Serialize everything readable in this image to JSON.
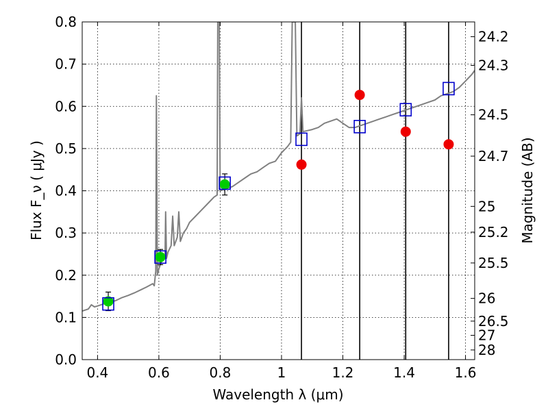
{
  "chart_data": {
    "type": "scatter",
    "xlabel": "Wavelength  λ (μm)",
    "ylabel": "Flux  F_ν  ( μJy )",
    "ylabel_right": "Magnitude (AB)",
    "xlim": [
      0.35,
      1.63
    ],
    "ylim": [
      0.0,
      0.8
    ],
    "grid": true,
    "x_ticks": [
      0.4,
      0.6,
      0.8,
      1.0,
      1.2,
      1.4,
      1.6
    ],
    "x_tick_labels": [
      "0.4",
      "0.6",
      "0.8",
      "1",
      "1.2",
      "1.4",
      "1.6"
    ],
    "y_ticks": [
      0.0,
      0.1,
      0.2,
      0.3,
      0.4,
      0.5,
      0.6,
      0.7,
      0.8
    ],
    "y_tick_labels": [
      "0.0",
      "0.1",
      "0.2",
      "0.3",
      "0.4",
      "0.5",
      "0.6",
      "0.7",
      "0.8"
    ],
    "right_ticks": [
      {
        "label": "24.2",
        "flux": 0.765
      },
      {
        "label": "24.3",
        "flux": 0.697
      },
      {
        "label": "24.5",
        "flux": 0.58
      },
      {
        "label": "24.7",
        "flux": 0.482
      },
      {
        "label": "25",
        "flux": 0.363
      },
      {
        "label": "25.2",
        "flux": 0.302
      },
      {
        "label": "25.5",
        "flux": 0.229
      },
      {
        "label": "26",
        "flux": 0.145
      },
      {
        "label": "26.5",
        "flux": 0.0912
      },
      {
        "label": "27",
        "flux": 0.0575
      },
      {
        "label": "28",
        "flux": 0.0229
      }
    ],
    "vertical_lines": [
      1.065,
      1.255,
      1.405,
      1.545
    ],
    "model_spectrum": {
      "color": "#808080",
      "points": [
        [
          0.35,
          0.115
        ],
        [
          0.37,
          0.12
        ],
        [
          0.38,
          0.13
        ],
        [
          0.39,
          0.125
        ],
        [
          0.4,
          0.127
        ],
        [
          0.42,
          0.132
        ],
        [
          0.44,
          0.135
        ],
        [
          0.46,
          0.14
        ],
        [
          0.48,
          0.147
        ],
        [
          0.5,
          0.152
        ],
        [
          0.52,
          0.158
        ],
        [
          0.54,
          0.165
        ],
        [
          0.56,
          0.172
        ],
        [
          0.58,
          0.18
        ],
        [
          0.585,
          0.175
        ],
        [
          0.59,
          0.21
        ],
        [
          0.592,
          0.625
        ],
        [
          0.595,
          0.2
        ],
        [
          0.6,
          0.215
        ],
        [
          0.61,
          0.235
        ],
        [
          0.62,
          0.24
        ],
        [
          0.622,
          0.35
        ],
        [
          0.625,
          0.24
        ],
        [
          0.63,
          0.255
        ],
        [
          0.64,
          0.27
        ],
        [
          0.645,
          0.34
        ],
        [
          0.65,
          0.27
        ],
        [
          0.66,
          0.29
        ],
        [
          0.665,
          0.35
        ],
        [
          0.67,
          0.28
        ],
        [
          0.68,
          0.3
        ],
        [
          0.69,
          0.31
        ],
        [
          0.7,
          0.325
        ],
        [
          0.72,
          0.34
        ],
        [
          0.74,
          0.355
        ],
        [
          0.76,
          0.37
        ],
        [
          0.78,
          0.385
        ],
        [
          0.79,
          0.39
        ],
        [
          0.792,
          0.8
        ],
        [
          0.797,
          0.8
        ],
        [
          0.8,
          0.4
        ],
        [
          0.82,
          0.405
        ],
        [
          0.84,
          0.41
        ],
        [
          0.86,
          0.42
        ],
        [
          0.88,
          0.43
        ],
        [
          0.9,
          0.44
        ],
        [
          0.92,
          0.445
        ],
        [
          0.94,
          0.455
        ],
        [
          0.96,
          0.465
        ],
        [
          0.98,
          0.47
        ],
        [
          1.0,
          0.49
        ],
        [
          1.02,
          0.505
        ],
        [
          1.03,
          0.515
        ],
        [
          1.035,
          0.8
        ],
        [
          1.045,
          0.8
        ],
        [
          1.05,
          0.53
        ],
        [
          1.06,
          0.535
        ],
        [
          1.065,
          0.62
        ],
        [
          1.07,
          0.54
        ],
        [
          1.1,
          0.545
        ],
        [
          1.12,
          0.55
        ],
        [
          1.14,
          0.56
        ],
        [
          1.16,
          0.565
        ],
        [
          1.18,
          0.57
        ],
        [
          1.2,
          0.56
        ],
        [
          1.22,
          0.55
        ],
        [
          1.24,
          0.55
        ],
        [
          1.26,
          0.555
        ],
        [
          1.28,
          0.56
        ],
        [
          1.3,
          0.565
        ],
        [
          1.32,
          0.57
        ],
        [
          1.34,
          0.575
        ],
        [
          1.36,
          0.58
        ],
        [
          1.38,
          0.585
        ],
        [
          1.4,
          0.59
        ],
        [
          1.42,
          0.595
        ],
        [
          1.44,
          0.6
        ],
        [
          1.46,
          0.605
        ],
        [
          1.48,
          0.61
        ],
        [
          1.5,
          0.615
        ],
        [
          1.52,
          0.625
        ],
        [
          1.54,
          0.63
        ],
        [
          1.56,
          0.635
        ],
        [
          1.58,
          0.645
        ],
        [
          1.6,
          0.66
        ],
        [
          1.62,
          0.675
        ],
        [
          1.63,
          0.685
        ]
      ]
    },
    "series": [
      {
        "marker": "circle",
        "color": "#00cc00",
        "points": [
          [
            0.435,
            0.138
          ],
          [
            0.605,
            0.243
          ],
          [
            0.815,
            0.415
          ]
        ],
        "yerr": [
          0.022,
          0.018,
          0.025
        ]
      },
      {
        "marker": "open-square",
        "color": "#0000cc",
        "points": [
          [
            0.435,
            0.132
          ],
          [
            0.605,
            0.243
          ],
          [
            0.815,
            0.418
          ],
          [
            1.065,
            0.522
          ],
          [
            1.255,
            0.552
          ],
          [
            1.405,
            0.592
          ],
          [
            1.545,
            0.642
          ]
        ]
      },
      {
        "marker": "circle",
        "color": "#ee0000",
        "points": [
          [
            1.065,
            0.462
          ],
          [
            1.255,
            0.627
          ],
          [
            1.405,
            0.54
          ],
          [
            1.545,
            0.51
          ]
        ]
      }
    ]
  }
}
